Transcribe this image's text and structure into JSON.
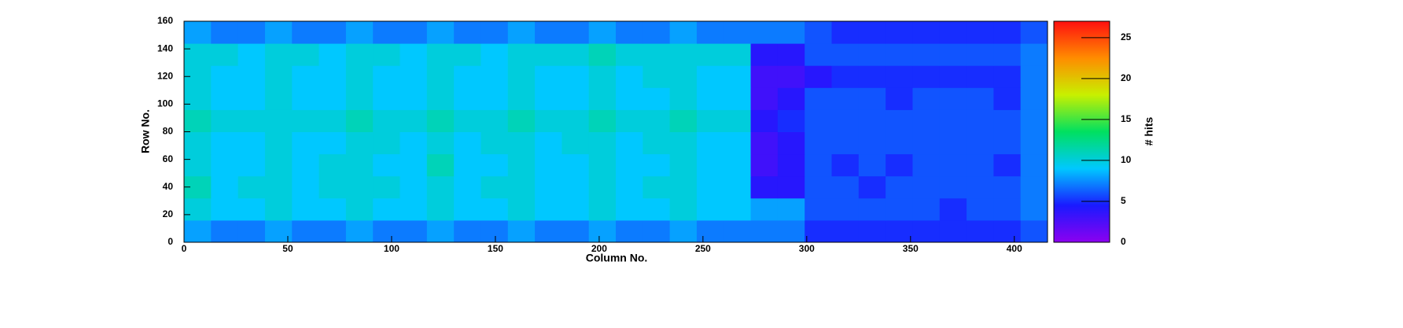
{
  "chart_data": {
    "type": "heatmap",
    "x_label": "Column No.",
    "y_label": "Row No.",
    "z_label": "# hits",
    "xbins": [
      0,
      13,
      26,
      39,
      52,
      65,
      78,
      91,
      104,
      117,
      130,
      143,
      156,
      169,
      182,
      195,
      208,
      221,
      234,
      247,
      260,
      273,
      286,
      299,
      312,
      325,
      338,
      351,
      364,
      377,
      390,
      403,
      416
    ],
    "ybins": [
      0,
      16,
      32,
      48,
      64,
      80,
      96,
      112,
      128,
      144,
      160
    ],
    "z": [
      [
        8,
        7,
        7,
        8,
        7,
        7,
        8,
        7,
        7,
        8,
        7,
        7,
        8,
        7,
        7,
        8,
        7,
        7,
        8,
        7,
        7,
        7,
        7,
        5,
        5,
        5,
        5,
        5,
        5,
        5,
        5,
        6
      ],
      [
        10,
        9,
        9,
        10,
        9,
        9,
        10,
        9,
        9,
        10,
        9,
        9,
        10,
        9,
        9,
        10,
        9,
        9,
        10,
        9,
        9,
        8,
        8,
        6,
        6,
        6,
        6,
        6,
        5,
        6,
        6,
        7
      ],
      [
        11,
        9,
        10,
        10,
        9,
        10,
        10,
        10,
        9,
        10,
        9,
        10,
        10,
        9,
        9,
        10,
        9,
        10,
        10,
        9,
        9,
        4,
        4,
        6,
        6,
        5,
        6,
        6,
        6,
        6,
        6,
        7
      ],
      [
        10,
        9,
        9,
        10,
        9,
        10,
        10,
        9,
        9,
        11,
        9,
        9,
        10,
        9,
        9,
        10,
        9,
        9,
        10,
        9,
        9,
        3,
        4,
        6,
        5,
        6,
        5,
        6,
        6,
        6,
        5,
        7
      ],
      [
        10,
        9,
        9,
        10,
        9,
        9,
        10,
        10,
        9,
        10,
        9,
        10,
        10,
        9,
        10,
        10,
        9,
        10,
        10,
        9,
        9,
        3,
        4,
        6,
        6,
        6,
        6,
        6,
        6,
        6,
        6,
        7
      ],
      [
        11,
        10,
        10,
        10,
        10,
        10,
        11,
        10,
        10,
        11,
        10,
        10,
        11,
        10,
        10,
        11,
        10,
        10,
        11,
        10,
        10,
        4,
        5,
        6,
        6,
        6,
        6,
        6,
        6,
        6,
        6,
        7
      ],
      [
        10,
        9,
        9,
        10,
        9,
        9,
        10,
        9,
        9,
        10,
        9,
        9,
        10,
        9,
        9,
        10,
        9,
        9,
        10,
        9,
        9,
        3,
        4,
        6,
        6,
        6,
        5,
        6,
        6,
        6,
        5,
        7
      ],
      [
        10,
        9,
        9,
        10,
        9,
        9,
        10,
        9,
        9,
        10,
        9,
        9,
        10,
        9,
        9,
        10,
        9,
        10,
        10,
        9,
        9,
        3,
        3,
        4,
        5,
        5,
        5,
        5,
        5,
        5,
        5,
        7
      ],
      [
        10,
        10,
        9,
        10,
        10,
        9,
        10,
        10,
        9,
        10,
        10,
        9,
        10,
        10,
        10,
        11,
        10,
        10,
        10,
        10,
        10,
        4,
        4,
        6,
        6,
        6,
        6,
        6,
        6,
        6,
        6,
        7
      ],
      [
        8,
        7,
        7,
        8,
        7,
        7,
        8,
        7,
        7,
        8,
        7,
        7,
        8,
        7,
        7,
        8,
        7,
        7,
        8,
        7,
        7,
        7,
        7,
        6,
        5,
        5,
        5,
        5,
        5,
        5,
        5,
        6
      ]
    ],
    "xlim": [
      0,
      416
    ],
    "ylim": [
      0,
      160
    ],
    "zlim": [
      0,
      27
    ],
    "xticks": [
      0,
      50,
      100,
      150,
      200,
      250,
      300,
      350,
      400
    ],
    "yticks": [
      0,
      20,
      40,
      60,
      80,
      100,
      120,
      140,
      160
    ],
    "zticks": [
      0,
      5,
      10,
      15,
      20,
      25
    ],
    "colorscale": [
      "#8c00f0",
      "#1a1aff",
      "#00c8ff",
      "#00e060",
      "#c8f000",
      "#ff8c00",
      "#ff1010"
    ]
  }
}
